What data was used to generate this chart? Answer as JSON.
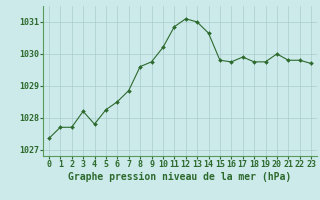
{
  "x": [
    0,
    1,
    2,
    3,
    4,
    5,
    6,
    7,
    8,
    9,
    10,
    11,
    12,
    13,
    14,
    15,
    16,
    17,
    18,
    19,
    20,
    21,
    22,
    23
  ],
  "y": [
    1027.35,
    1027.7,
    1027.7,
    1028.2,
    1027.8,
    1028.25,
    1028.5,
    1028.85,
    1029.6,
    1029.75,
    1030.2,
    1030.85,
    1031.1,
    1031.0,
    1030.65,
    1029.8,
    1029.75,
    1029.9,
    1029.75,
    1029.75,
    1030.0,
    1029.8,
    1029.8,
    1029.7
  ],
  "line_color": "#2d6a2d",
  "marker_color": "#2d6a2d",
  "bg_color": "#cceaea",
  "grid_color": "#aacccc",
  "title": "Graphe pression niveau de la mer (hPa)",
  "ylim_min": 1026.8,
  "ylim_max": 1031.5,
  "yticks": [
    1027,
    1028,
    1029,
    1030,
    1031
  ],
  "xticks": [
    0,
    1,
    2,
    3,
    4,
    5,
    6,
    7,
    8,
    9,
    10,
    11,
    12,
    13,
    14,
    15,
    16,
    17,
    18,
    19,
    20,
    21,
    22,
    23
  ],
  "tick_color": "#2d6a2d",
  "title_color": "#2d6a2d",
  "title_fontsize": 7.0,
  "tick_fontsize": 6.0,
  "border_color": "#5a9a5a"
}
